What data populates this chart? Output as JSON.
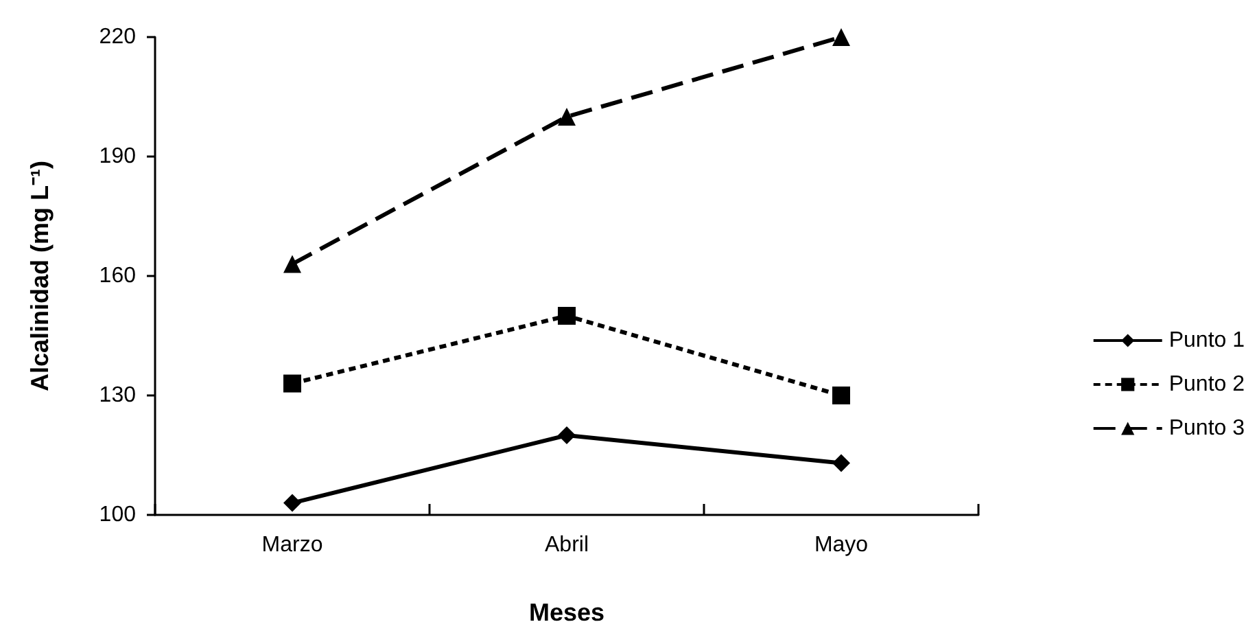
{
  "chart_data": {
    "type": "line",
    "xlabel": "Meses",
    "ylabel": "Alcalinidad (mg L⁻¹)",
    "categories": [
      "Marzo",
      "Abril",
      "Mayo"
    ],
    "series": [
      {
        "name": "Punto 1",
        "color": "#000000",
        "values": [
          103,
          120,
          113
        ],
        "marker": "diamond",
        "line_style": "solid"
      },
      {
        "name": "Punto 2",
        "color": "#000000",
        "values": [
          133,
          150,
          130
        ],
        "marker": "square",
        "line_style": "dotted"
      },
      {
        "name": "Punto 3",
        "color": "#000000",
        "values": [
          163,
          200,
          220
        ],
        "marker": "triangle",
        "line_style": "dashed"
      }
    ],
    "ylim": [
      100,
      220
    ],
    "yticks": [
      100,
      130,
      160,
      190,
      220
    ],
    "grid": false,
    "legend": "right"
  }
}
